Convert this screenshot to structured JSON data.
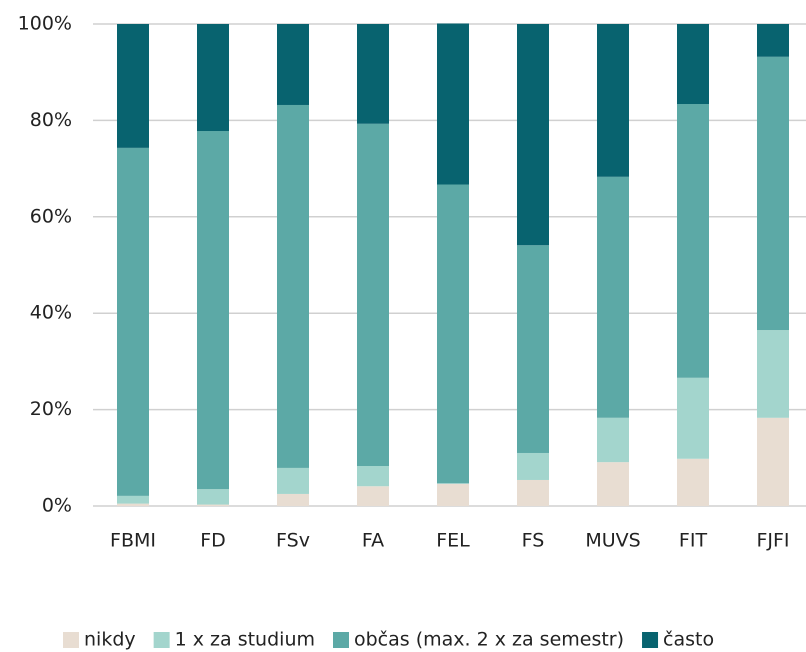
{
  "chart_data": {
    "type": "stacked_bar",
    "categories": [
      "FBMI",
      "FD",
      "FSv",
      "FA",
      "FEL",
      "FS",
      "MUVS",
      "FIT",
      "FJFI"
    ],
    "series": [
      {
        "name": "nikdy",
        "color": "#e8ddd2",
        "values": [
          0.5,
          0.3,
          2.5,
          4.1,
          4.6,
          5.4,
          9.1,
          9.8,
          18.3
        ]
      },
      {
        "name": "1 x za studium",
        "color": "#a3d5cd",
        "values": [
          1.6,
          3.2,
          5.4,
          4.2,
          0.1,
          5.6,
          9.2,
          16.8,
          18.2
        ]
      },
      {
        "name": "občas (max. 2 x za semestr)",
        "color": "#5ca9a6",
        "values": [
          72.2,
          74.3,
          75.3,
          71.0,
          62.0,
          43.1,
          50.0,
          56.8,
          56.7
        ]
      },
      {
        "name": "často",
        "color": "#08636f",
        "values": [
          25.7,
          22.2,
          16.8,
          20.7,
          33.4,
          45.9,
          31.7,
          16.6,
          6.8
        ]
      }
    ],
    "ylim": [
      0,
      100
    ],
    "yticks": [
      {
        "value": 0,
        "label": "0%"
      },
      {
        "value": 20,
        "label": "20%"
      },
      {
        "value": 40,
        "label": "40%"
      },
      {
        "value": 60,
        "label": "60%"
      },
      {
        "value": 80,
        "label": "80%"
      },
      {
        "value": 100,
        "label": "100%"
      }
    ],
    "grid": true,
    "legend": "bottom"
  }
}
